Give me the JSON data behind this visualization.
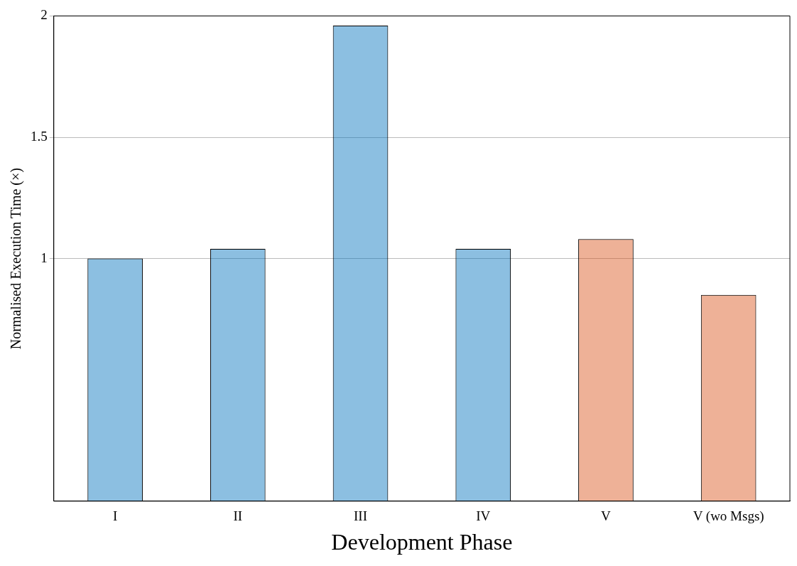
{
  "chart_data": {
    "type": "bar",
    "xlabel": "Development Phase",
    "ylabel": "Normalised Execution Time (×)",
    "categories": [
      "I",
      "II",
      "III",
      "IV",
      "V",
      "V (wo Msgs)"
    ],
    "values": [
      1.0,
      1.04,
      1.96,
      1.04,
      1.08,
      0.85
    ],
    "colors": [
      "#0072bd",
      "#0072bd",
      "#0072bd",
      "#0072bd",
      "#d95319",
      "#d95319"
    ],
    "ylim": [
      0,
      2
    ],
    "yticks": [
      1,
      1.5,
      2
    ],
    "grid": "y",
    "legend": false
  }
}
